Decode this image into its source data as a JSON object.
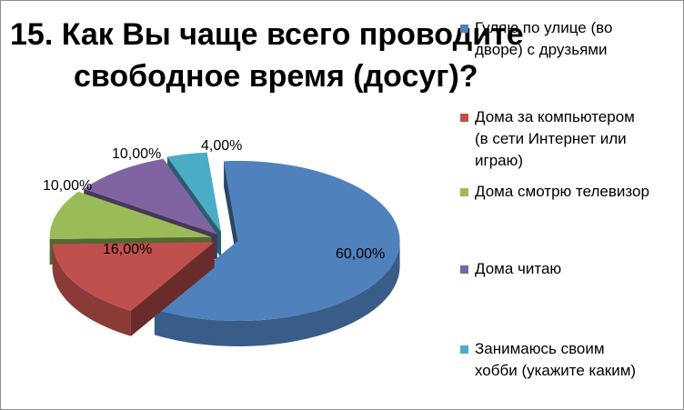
{
  "chart_data": {
    "type": "pie",
    "title": "15. Как Вы чаще всего проводите свободное время (досуг)?",
    "title_lines": [
      "15. Как Вы чаще всего проводите",
      "свободное время (досуг)?"
    ],
    "categories": [
      "Гуляю по улице (во дворе) с друзьями",
      "Дома за компьютером (в сети Интернет или играю)",
      "Дома смотрю телевизор",
      "Дома читаю",
      "Занимаюсь своим хобби (укажите каким)"
    ],
    "legend_lines": [
      [
        "Гуляю по улице (во",
        "дворе) с друзьями"
      ],
      [
        "Дома за компьютером",
        "(в сети Интернет или",
        "играю)"
      ],
      [
        "Дома смотрю телевизор"
      ],
      [
        "Дома читаю"
      ],
      [
        "Занимаюсь своим",
        "хобби (укажите каким)"
      ]
    ],
    "values": [
      60,
      16,
      10,
      10,
      4
    ],
    "data_labels": [
      "60,00%",
      "16,00%",
      "10,00%",
      "10,00%",
      "4,00%"
    ],
    "colors": [
      "#4f81bd",
      "#c0504d",
      "#9bbb59",
      "#8064a2",
      "#4bacc6"
    ],
    "style": "3d-exploded",
    "legend_position": "right"
  }
}
